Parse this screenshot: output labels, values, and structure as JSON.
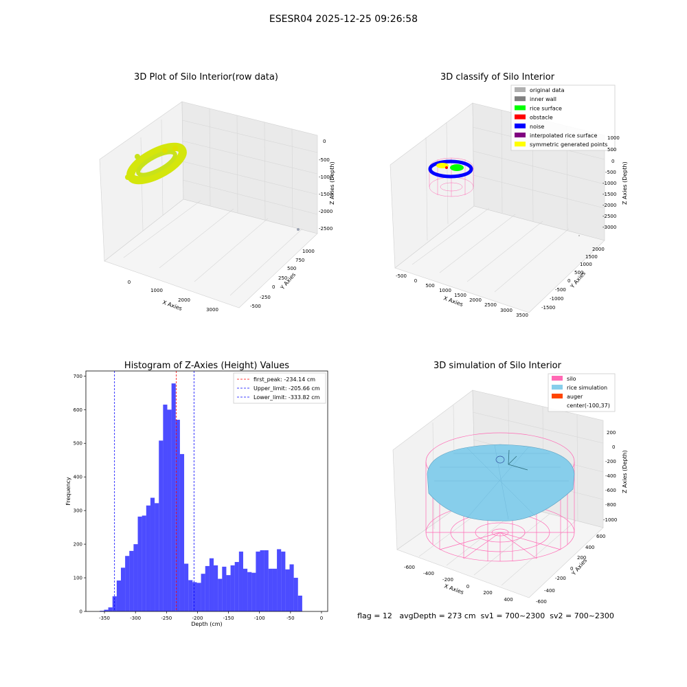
{
  "figure": {
    "suptitle": "ESESR04 2025-12-25 09:26:58",
    "status_line": "flag = 12   avgDepth = 273 cm  sv1 = 700~2300  sv2 = 700~2300"
  },
  "colors": {
    "histogram_bar": "#0000ff",
    "first_peak_line": "#ff0000",
    "limit_lines": "#0000ff",
    "raw_points": "#d4e60c",
    "silo": "#ff69b4",
    "rice_simulation": "#87ceeb",
    "auger": "#ff4500"
  },
  "chart_data": [
    {
      "type": "scatter",
      "projection": "3d",
      "title": "3D Plot of Silo Interior(row data)",
      "xlabel": "X Axies",
      "ylabel": "Y Axies",
      "zlabel": "Z Axies (Depth)",
      "x_ticks": [
        "0",
        "1000",
        "2000",
        "3000"
      ],
      "y_ticks": [
        "-500",
        "-250",
        "0",
        "250",
        "500",
        "750",
        "1000"
      ],
      "z_ticks": [
        "0",
        "-500",
        "-1000",
        "-1500",
        "-2000",
        "-2500"
      ],
      "grid": true
    },
    {
      "type": "scatter",
      "projection": "3d",
      "title": "3D classify of Silo Interior",
      "xlabel": "X Axies",
      "ylabel": "Y Axies",
      "zlabel": "Z Axies (Depth)",
      "x_ticks": [
        "-500",
        "0",
        "500",
        "1000",
        "1500",
        "2000",
        "2500",
        "3000",
        "3500"
      ],
      "y_ticks": [
        "-1500",
        "-1000",
        "-500",
        "0",
        "500",
        "1000",
        "1500",
        "2000"
      ],
      "z_ticks": [
        "1000",
        "500",
        "0",
        "-500",
        "-1000",
        "-1500",
        "-2000",
        "-2500",
        "-3000"
      ],
      "legend_position": "top-right",
      "legend": [
        {
          "label": "original data",
          "color": "#b0b0b0"
        },
        {
          "label": "inner wall",
          "color": "#808080"
        },
        {
          "label": "rice surface",
          "color": "#00ff00"
        },
        {
          "label": "obstacle",
          "color": "#ff0000"
        },
        {
          "label": "noise",
          "color": "#0000ff"
        },
        {
          "label": "interpolated rice surface",
          "color": "#800080"
        },
        {
          "label": "symmetric generated points",
          "color": "#ffff00"
        }
      ],
      "grid": true
    },
    {
      "type": "bar",
      "title": "Histogram of Z-Axies (Height) Values",
      "xlabel": "Depth (cm)",
      "ylabel": "Frequency",
      "xlim": [
        -380,
        10
      ],
      "ylim": [
        0,
        715
      ],
      "x_ticks": [
        -350,
        -300,
        -250,
        -200,
        -150,
        -100,
        -50,
        0
      ],
      "y_ticks": [
        0,
        100,
        200,
        300,
        400,
        500,
        600,
        700
      ],
      "bin_width": 6.8,
      "bins": [
        {
          "x0": -357.5,
          "count": 2
        },
        {
          "x0": -350.7,
          "count": 5
        },
        {
          "x0": -343.9,
          "count": 12
        },
        {
          "x0": -337.1,
          "count": 45
        },
        {
          "x0": -330.3,
          "count": 92
        },
        {
          "x0": -323.5,
          "count": 130
        },
        {
          "x0": -316.7,
          "count": 165
        },
        {
          "x0": -309.9,
          "count": 180
        },
        {
          "x0": -303.1,
          "count": 200
        },
        {
          "x0": -296.3,
          "count": 282
        },
        {
          "x0": -289.5,
          "count": 285
        },
        {
          "x0": -282.7,
          "count": 315
        },
        {
          "x0": -275.9,
          "count": 338
        },
        {
          "x0": -269.1,
          "count": 322
        },
        {
          "x0": -262.3,
          "count": 508
        },
        {
          "x0": -255.5,
          "count": 615
        },
        {
          "x0": -248.7,
          "count": 600
        },
        {
          "x0": -241.9,
          "count": 678
        },
        {
          "x0": -235.1,
          "count": 570
        },
        {
          "x0": -228.3,
          "count": 468
        },
        {
          "x0": -221.5,
          "count": 142
        },
        {
          "x0": -214.7,
          "count": 93
        },
        {
          "x0": -207.9,
          "count": 87
        },
        {
          "x0": -201.1,
          "count": 85
        },
        {
          "x0": -194.3,
          "count": 112
        },
        {
          "x0": -187.5,
          "count": 135
        },
        {
          "x0": -180.7,
          "count": 158
        },
        {
          "x0": -173.9,
          "count": 137
        },
        {
          "x0": -167.1,
          "count": 97
        },
        {
          "x0": -160.3,
          "count": 133
        },
        {
          "x0": -153.5,
          "count": 108
        },
        {
          "x0": -146.7,
          "count": 137
        },
        {
          "x0": -139.9,
          "count": 147
        },
        {
          "x0": -133.1,
          "count": 178
        },
        {
          "x0": -126.3,
          "count": 127
        },
        {
          "x0": -119.5,
          "count": 117
        },
        {
          "x0": -112.7,
          "count": 115
        },
        {
          "x0": -105.9,
          "count": 178
        },
        {
          "x0": -99.1,
          "count": 182
        },
        {
          "x0": -92.3,
          "count": 182
        },
        {
          "x0": -85.5,
          "count": 127
        },
        {
          "x0": -78.7,
          "count": 127
        },
        {
          "x0": -71.9,
          "count": 185
        },
        {
          "x0": -65.1,
          "count": 178
        },
        {
          "x0": -58.3,
          "count": 125
        },
        {
          "x0": -51.5,
          "count": 140
        },
        {
          "x0": -44.7,
          "count": 100
        },
        {
          "x0": -37.9,
          "count": 47
        }
      ],
      "vlines": [
        {
          "name": "first_peak: -234.14 cm",
          "x": -234.14,
          "color": "#ff0000"
        },
        {
          "name": "Upper_limit: -205.66 cm",
          "x": -205.66,
          "color": "#0000ff"
        },
        {
          "name": "Lower_limit: -333.82 cm",
          "x": -333.82,
          "color": "#0000ff"
        }
      ],
      "legend_position": "top-right",
      "grid": false
    },
    {
      "type": "surface",
      "projection": "3d",
      "title": "3D simulation of Silo Interior",
      "xlabel": "X Axies",
      "ylabel": "Y Axies",
      "zlabel": "Z Axies (Depth)",
      "x_ticks": [
        "-600",
        "-400",
        "-200",
        "0",
        "200",
        "400"
      ],
      "y_ticks": [
        "-600",
        "-400",
        "-200",
        "0",
        "200",
        "400",
        "600"
      ],
      "z_ticks": [
        "200",
        "0",
        "-200",
        "-400",
        "-600",
        "-800",
        "-1000"
      ],
      "legend_position": "top-right",
      "legend": [
        {
          "label": "silo",
          "color": "#ff69b4"
        },
        {
          "label": "rice simulation",
          "color": "#87ceeb"
        },
        {
          "label": "auger",
          "color": "#ff4500"
        },
        {
          "label": "center(-100,37)",
          "color": ""
        }
      ],
      "grid": true
    }
  ]
}
